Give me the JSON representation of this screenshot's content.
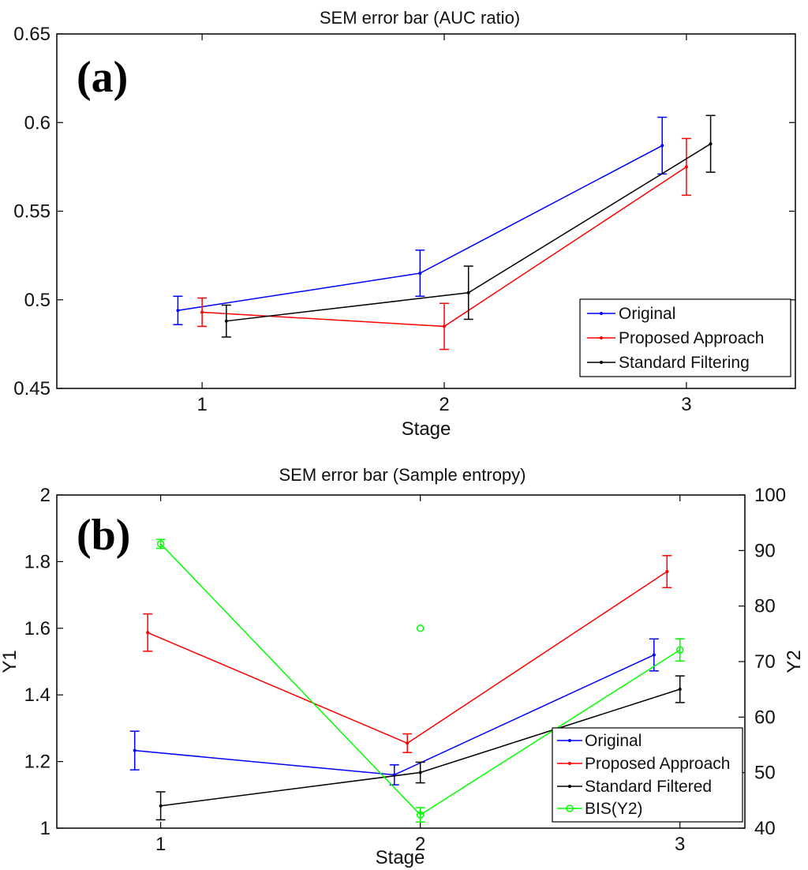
{
  "chart_data": [
    {
      "type": "line",
      "panel_label": "(a)",
      "title": "SEM error bar (AUC ratio)",
      "xlabel": "Stage",
      "ylabel": "",
      "x_ticks": [
        "1",
        "2",
        "3"
      ],
      "y_ticks": [
        "0.45",
        "0.5",
        "0.55",
        "0.6",
        "0.65"
      ],
      "xlim": [
        0.4,
        3.45
      ],
      "ylim": [
        0.45,
        0.65
      ],
      "legend_position": "bottom-right",
      "series": [
        {
          "name": "Original",
          "color": "#0000ff",
          "x": [
            0.9,
            1.9,
            2.9
          ],
          "values": [
            0.494,
            0.515,
            0.587
          ],
          "err": [
            0.008,
            0.013,
            0.016
          ]
        },
        {
          "name": "Proposed Approach",
          "color": "#ff0000",
          "x": [
            1.0,
            2.0,
            3.0
          ],
          "values": [
            0.493,
            0.485,
            0.575
          ],
          "err": [
            0.008,
            0.013,
            0.016
          ]
        },
        {
          "name": "Standard Filtering",
          "color": "#000000",
          "x": [
            1.1,
            2.1,
            3.1
          ],
          "values": [
            0.488,
            0.504,
            0.588
          ],
          "err": [
            0.009,
            0.015,
            0.016
          ]
        }
      ]
    },
    {
      "type": "line",
      "panel_label": "(b)",
      "title": "SEM error bar (Sample entropy)",
      "xlabel": "Stage",
      "ylabel": "Y1",
      "y2label": "Y2",
      "x_ticks": [
        "1",
        "2",
        "3"
      ],
      "y_ticks": [
        "1",
        "1.2",
        "1.4",
        "1.6",
        "1.8",
        "2"
      ],
      "y2_ticks": [
        "40",
        "50",
        "60",
        "70",
        "80",
        "90",
        "100"
      ],
      "xlim": [
        0.6,
        3.25
      ],
      "ylim": [
        1.0,
        2.0
      ],
      "y2lim": [
        40,
        100
      ],
      "legend_position": "bottom-right",
      "series": [
        {
          "name": "Original",
          "color": "#0000ff",
          "axis": "y1",
          "x": [
            0.9,
            1.9,
            2.9
          ],
          "values": [
            1.233,
            1.16,
            1.52
          ],
          "err": [
            0.058,
            0.03,
            0.048
          ]
        },
        {
          "name": "Proposed Approach",
          "color": "#ff0000",
          "axis": "y1",
          "x": [
            0.95,
            1.95,
            2.95
          ],
          "values": [
            1.587,
            1.255,
            1.77
          ],
          "err": [
            0.056,
            0.028,
            0.048
          ]
        },
        {
          "name": "Standard Filtered",
          "color": "#000000",
          "axis": "y1",
          "x": [
            1.0,
            2.0,
            3.0
          ],
          "values": [
            1.067,
            1.167,
            1.417
          ],
          "err": [
            0.042,
            0.031,
            0.04
          ]
        },
        {
          "name": "BIS(Y2)",
          "color": "#00ff00",
          "axis": "y2",
          "marker": "circle",
          "x": [
            1.0,
            2.0,
            3.0
          ],
          "values": [
            91.2,
            42.4,
            72.1
          ],
          "err": [
            0.8,
            1.3,
            2.0
          ]
        }
      ],
      "extra_points": [
        {
          "series": "BIS(Y2)",
          "x": 2.0,
          "value": 76.0
        }
      ]
    }
  ]
}
